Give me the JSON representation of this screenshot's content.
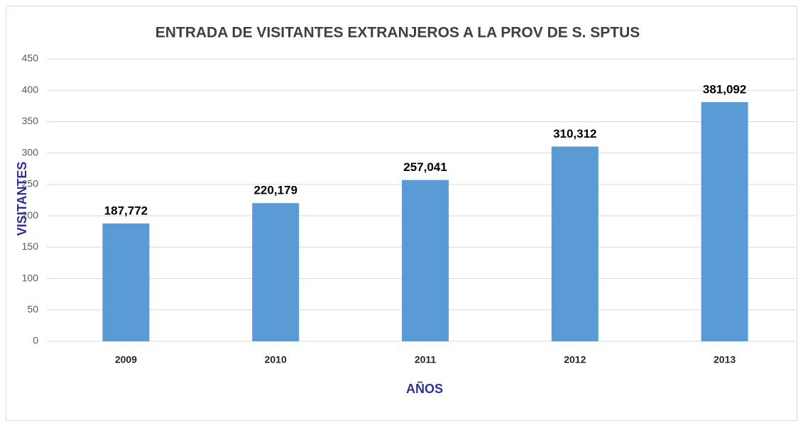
{
  "chart_data": {
    "type": "bar",
    "title": "ENTRADA DE VISITANTES  EXTRANJEROS A LA PROV DE S. SPTUS",
    "x_label": "AÑOS",
    "y_label": "VISITANTES",
    "categories": [
      "2009",
      "2010",
      "2011",
      "2012",
      "2013"
    ],
    "values": [
      187.772,
      220.179,
      257.041,
      310.312,
      381.092
    ],
    "value_labels": [
      "187,772",
      "220,179",
      "257,041",
      "310,312",
      "381,092"
    ],
    "color": "#5b9bd5",
    "ylim": [
      0,
      450
    ],
    "yticks": [
      0,
      50,
      100,
      150,
      200,
      250,
      300,
      350,
      400,
      450
    ],
    "grid": true
  }
}
